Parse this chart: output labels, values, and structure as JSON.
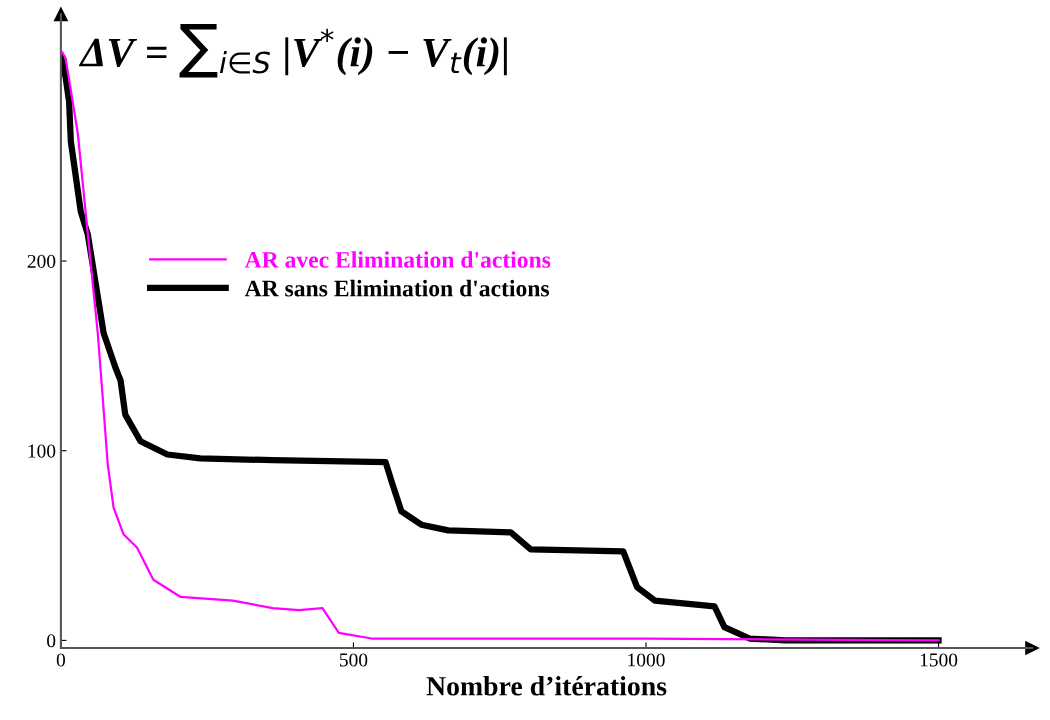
{
  "chart_data": {
    "type": "line",
    "xlabel": "Nombre d’itérations",
    "annotations": [
      "ΔV = ∑$_{i∈S}$ |V$^{*}$(i) − V$_{t}$(i)|"
    ],
    "xlim": [
      0,
      1660
    ],
    "ylim": [
      -4,
      330
    ],
    "xticks": [
      0,
      500,
      1000,
      1500
    ],
    "yticks": [
      0,
      100,
      200
    ],
    "grid": false,
    "legend": "left",
    "marker": "none",
    "line_style": "solid",
    "series": [
      {
        "name": "AR avec Elimination d'actions",
        "color": "#ff00ff",
        "x": [
          0,
          8,
          29,
          46,
          63,
          71,
          80,
          90,
          107,
          130,
          158,
          204,
          294,
          362,
          407,
          447,
          475,
          531,
          1000,
          1500
        ],
        "values": [
          311,
          307,
          267,
          214,
          162,
          130,
          93,
          70,
          56,
          49,
          32,
          23,
          21,
          17,
          16,
          17,
          4,
          1,
          1,
          0
        ]
      },
      {
        "name": "AR sans Elimination d'actions",
        "color": "#000000",
        "x": [
          0,
          8,
          14,
          17,
          34,
          46,
          73,
          93,
          102,
          110,
          136,
          182,
          238,
          362,
          555,
          565,
          582,
          616,
          662,
          769,
          803,
          961,
          985,
          1015,
          1117,
          1134,
          1177,
          1239,
          1500
        ],
        "values": [
          308,
          297,
          284,
          263,
          226,
          214,
          162,
          144,
          137,
          119,
          105,
          98,
          96,
          95,
          94,
          84,
          68,
          61,
          58,
          57,
          48,
          47,
          28,
          21,
          18,
          7,
          1,
          0,
          0
        ]
      }
    ]
  }
}
